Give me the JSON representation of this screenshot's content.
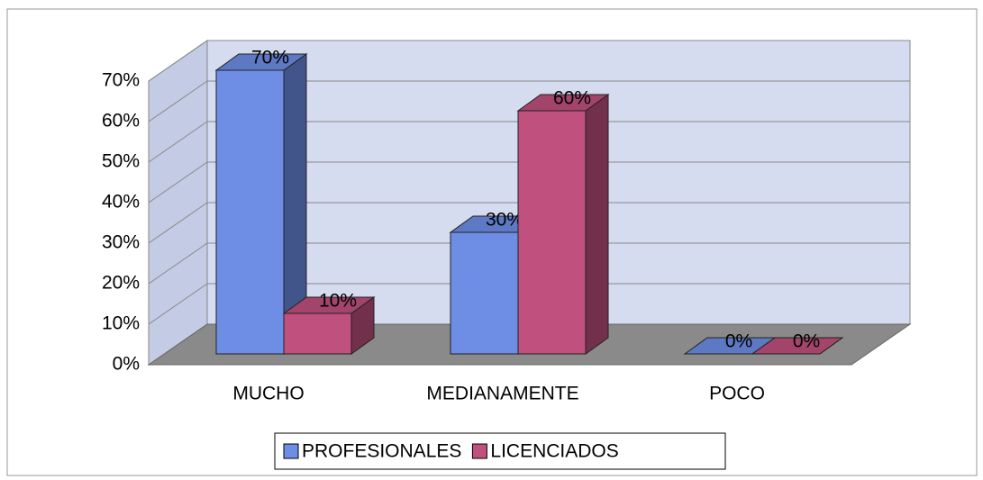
{
  "chart_data": {
    "type": "bar3d",
    "categories": [
      "MUCHO",
      "MEDIANAMENTE",
      "POCO"
    ],
    "series": [
      {
        "name": "PROFESIONALES",
        "color": "#6e8ee6",
        "values": [
          70,
          30,
          0
        ],
        "value_labels": [
          "70%",
          "30%",
          "0%"
        ]
      },
      {
        "name": "LICENCIADOS",
        "color": "#c0507e",
        "values": [
          10,
          60,
          0
        ],
        "value_labels": [
          "10%",
          "60%",
          "0%"
        ]
      }
    ],
    "ylim": [
      0,
      70
    ],
    "yticks": [
      {
        "value": 0,
        "label": "0%"
      },
      {
        "value": 10,
        "label": "10%"
      },
      {
        "value": 20,
        "label": "20%"
      },
      {
        "value": 30,
        "label": "30%"
      },
      {
        "value": 40,
        "label": "40%"
      },
      {
        "value": 50,
        "label": "50%"
      },
      {
        "value": 60,
        "label": "60%"
      },
      {
        "value": 70,
        "label": "70%"
      }
    ],
    "grid": true,
    "legend": "bottom"
  }
}
